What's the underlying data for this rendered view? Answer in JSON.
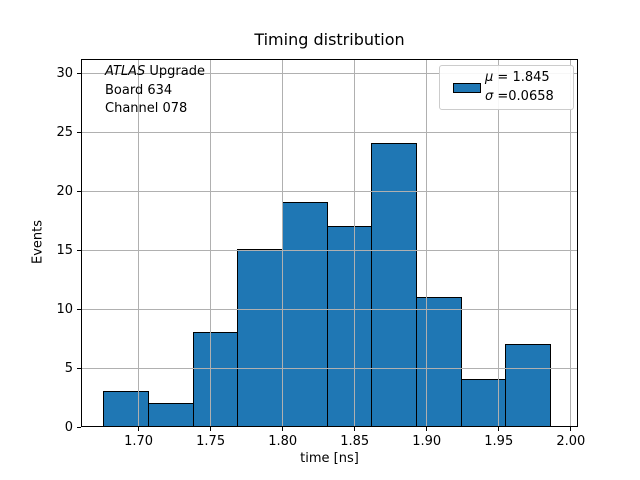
{
  "figure": {
    "title": "Timing distribution",
    "xlabel": "time [ns]",
    "ylabel": "Events"
  },
  "annotation": {
    "line1_italic": "ATLAS",
    "line1_rest": " Upgrade",
    "line2": "Board 634",
    "line3": "Channel 078"
  },
  "legend": {
    "mu_symbol": "μ",
    "mu_value": " = 1.845",
    "sigma_symbol": "σ",
    "sigma_value": " =0.0658"
  },
  "colors": {
    "bar_fill": "#1f77b4",
    "bar_edge": "#000000",
    "grid": "#b0b0b0",
    "spine": "#000000",
    "legend_border": "#cccccc",
    "background": "#ffffff"
  },
  "chart_data": {
    "type": "bar",
    "subtype": "histogram",
    "title": "Timing distribution",
    "xlabel": "time [ns]",
    "ylabel": "Events",
    "bin_edges": [
      1.676,
      1.707,
      1.738,
      1.769,
      1.8,
      1.831,
      1.862,
      1.893,
      1.924,
      1.955,
      1.986
    ],
    "counts": [
      3,
      2,
      8,
      15,
      19,
      17,
      24,
      11,
      4,
      7
    ],
    "x_ticks": [
      1.7,
      1.75,
      1.8,
      1.85,
      1.9,
      1.95,
      2.0
    ],
    "x_tick_labels": [
      "1.70",
      "1.75",
      "1.80",
      "1.85",
      "1.90",
      "1.95",
      "2.00"
    ],
    "y_ticks": [
      0,
      5,
      10,
      15,
      20,
      25,
      30
    ],
    "y_tick_labels": [
      "0",
      "5",
      "10",
      "15",
      "20",
      "25",
      "30"
    ],
    "xlim": [
      1.66,
      2.005
    ],
    "ylim": [
      0,
      31.2
    ],
    "grid": true,
    "grid_above_bars": true,
    "legend_position": "upper right",
    "legend_entries": [
      "μ = 1.845",
      "σ =0.0658"
    ],
    "stats": {
      "mu": 1.845,
      "sigma": 0.0658
    },
    "total_events": 110
  }
}
